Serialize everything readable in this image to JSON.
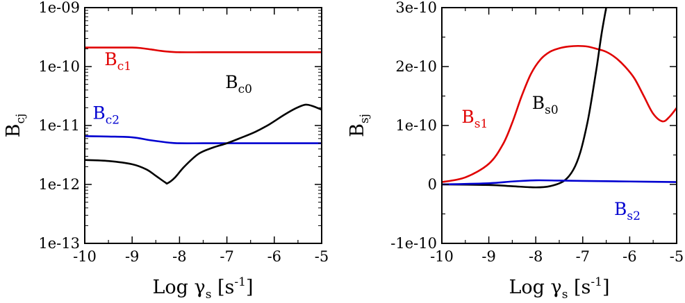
{
  "chart_data": [
    {
      "type": "line",
      "xlabel": {
        "main": "Log γ",
        "sub": "s",
        "pre": " [s",
        "sup": "-1",
        "post": "]"
      },
      "ylabel": {
        "main": "B",
        "sub": "cj"
      },
      "xlim": [
        -10,
        -5
      ],
      "ylim": [
        1e-13,
        1e-09
      ],
      "yscale": "log",
      "grid": false,
      "xticks": [
        -10,
        -9,
        -8,
        -7,
        -6,
        -5
      ],
      "xtick_labels": [
        "-10",
        "-9",
        "-8",
        "-7",
        "-6",
        "-5"
      ],
      "yticks": [
        1e-13,
        1e-12,
        1e-11,
        1e-10,
        1e-09
      ],
      "ytick_labels": [
        "1e-13",
        "1e-12",
        "1e-11",
        "1e-10",
        "1e-09"
      ],
      "series": [
        {
          "name": "Bc1",
          "label_main": "B",
          "label_sub": "c1",
          "color": "#e00000",
          "label_at": [
            -9.3,
            1.05e-10
          ],
          "x": [
            -10,
            -9.5,
            -9,
            -8.8,
            -8.6,
            -8.4,
            -8.2,
            -8,
            -7.5,
            -7,
            -6,
            -5
          ],
          "y": [
            2.1e-10,
            2.1e-10,
            2.1e-10,
            2.05e-10,
            1.95e-10,
            1.85e-10,
            1.78e-10,
            1.75e-10,
            1.75e-10,
            1.75e-10,
            1.75e-10,
            1.75e-10
          ]
        },
        {
          "name": "Bc2",
          "label_main": "B",
          "label_sub": "c2",
          "color": "#0000d0",
          "label_at": [
            -9.55,
            1.3e-11
          ],
          "x": [
            -10,
            -9.5,
            -9,
            -8.6,
            -8.2,
            -8,
            -7.5,
            -7,
            -6,
            -5
          ],
          "y": [
            6.6e-12,
            6.5e-12,
            6.3e-12,
            5.6e-12,
            5.1e-12,
            5e-12,
            5e-12,
            5e-12,
            5e-12,
            5e-12
          ]
        },
        {
          "name": "Bc0",
          "label_main": "B",
          "label_sub": "c0",
          "color": "#000000",
          "label_at": [
            -6.75,
            4.3e-11
          ],
          "x": [
            -10,
            -9.5,
            -9,
            -8.7,
            -8.5,
            -8.3,
            -8.25,
            -8.1,
            -7.9,
            -7.6,
            -7.3,
            -7,
            -6.7,
            -6.4,
            -6.1,
            -5.8,
            -5.55,
            -5.35,
            -5.2,
            -5
          ],
          "y": [
            2.6e-12,
            2.5e-12,
            2.2e-12,
            1.8e-12,
            1.4e-12,
            1.08e-12,
            1.05e-12,
            1.3e-12,
            2e-12,
            3.3e-12,
            4.2e-12,
            5e-12,
            6.2e-12,
            7.8e-12,
            1.05e-11,
            1.5e-11,
            1.95e-11,
            2.25e-11,
            2.15e-11,
            1.85e-11
          ]
        }
      ]
    },
    {
      "type": "line",
      "xlabel": {
        "main": "Log γ",
        "sub": "s",
        "pre": " [s",
        "sup": "-1",
        "post": "]"
      },
      "ylabel": {
        "main": "B",
        "sub": "sj"
      },
      "xlim": [
        -10,
        -5
      ],
      "ylim": [
        -1e-10,
        3e-10
      ],
      "yscale": "linear",
      "grid": false,
      "xticks": [
        -10,
        -9,
        -8,
        -7,
        -6,
        -5
      ],
      "xtick_labels": [
        "-10",
        "-9",
        "-8",
        "-7",
        "-6",
        "-5"
      ],
      "yticks": [
        -1e-10,
        0,
        1e-10,
        2e-10,
        3e-10
      ],
      "ytick_labels": [
        "-1e-10",
        "0",
        "1e-10",
        "2e-10",
        "3e-10"
      ],
      "series": [
        {
          "name": "Bs1",
          "label_main": "B",
          "label_sub": "s1",
          "color": "#e00000",
          "label_at": [
            -9.3,
            1.05e-10
          ],
          "x": [
            -10,
            -9.5,
            -9,
            -8.7,
            -8.5,
            -8.3,
            -8.1,
            -7.9,
            -7.7,
            -7.5,
            -7.3,
            -7.1,
            -6.9,
            -6.7,
            -6.5,
            -6.3,
            -6.1,
            -5.9,
            -5.7,
            -5.5,
            -5.3,
            -5.15,
            -5
          ],
          "y": [
            4e-12,
            1.2e-11,
            3.5e-11,
            6.8e-11,
            1.05e-10,
            1.5e-10,
            1.88e-10,
            2.12e-10,
            2.25e-10,
            2.31e-10,
            2.34e-10,
            2.35e-10,
            2.34e-10,
            2.3e-10,
            2.25e-10,
            2.15e-10,
            2e-10,
            1.8e-10,
            1.5e-10,
            1.2e-10,
            1.07e-10,
            1.15e-10,
            1.3e-10
          ]
        },
        {
          "name": "Bs0",
          "label_main": "B",
          "label_sub": "s0",
          "color": "#000000",
          "label_at": [
            -7.8,
            1.28e-10
          ],
          "x": [
            -10,
            -9,
            -8.5,
            -8,
            -7.7,
            -7.4,
            -7.2,
            -7.05,
            -6.9,
            -6.8,
            -6.7,
            -6.6,
            -6.5,
            -6.45
          ],
          "y": [
            0,
            -1e-12,
            -3e-12,
            -5e-12,
            -3e-12,
            6e-12,
            2.5e-11,
            5.5e-11,
            1.05e-10,
            1.5e-10,
            2e-10,
            2.55e-10,
            3e-10,
            3.2e-10
          ]
        },
        {
          "name": "Bs2",
          "label_main": "B",
          "label_sub": "s2",
          "color": "#0000d0",
          "label_at": [
            -6.05,
            -5.2e-11
          ],
          "x": [
            -10,
            -9,
            -8.5,
            -8,
            -7.5,
            -7,
            -6,
            -5
          ],
          "y": [
            0,
            2e-12,
            5e-12,
            7e-12,
            6.5e-12,
            6e-12,
            5e-12,
            4e-12
          ]
        }
      ]
    }
  ]
}
